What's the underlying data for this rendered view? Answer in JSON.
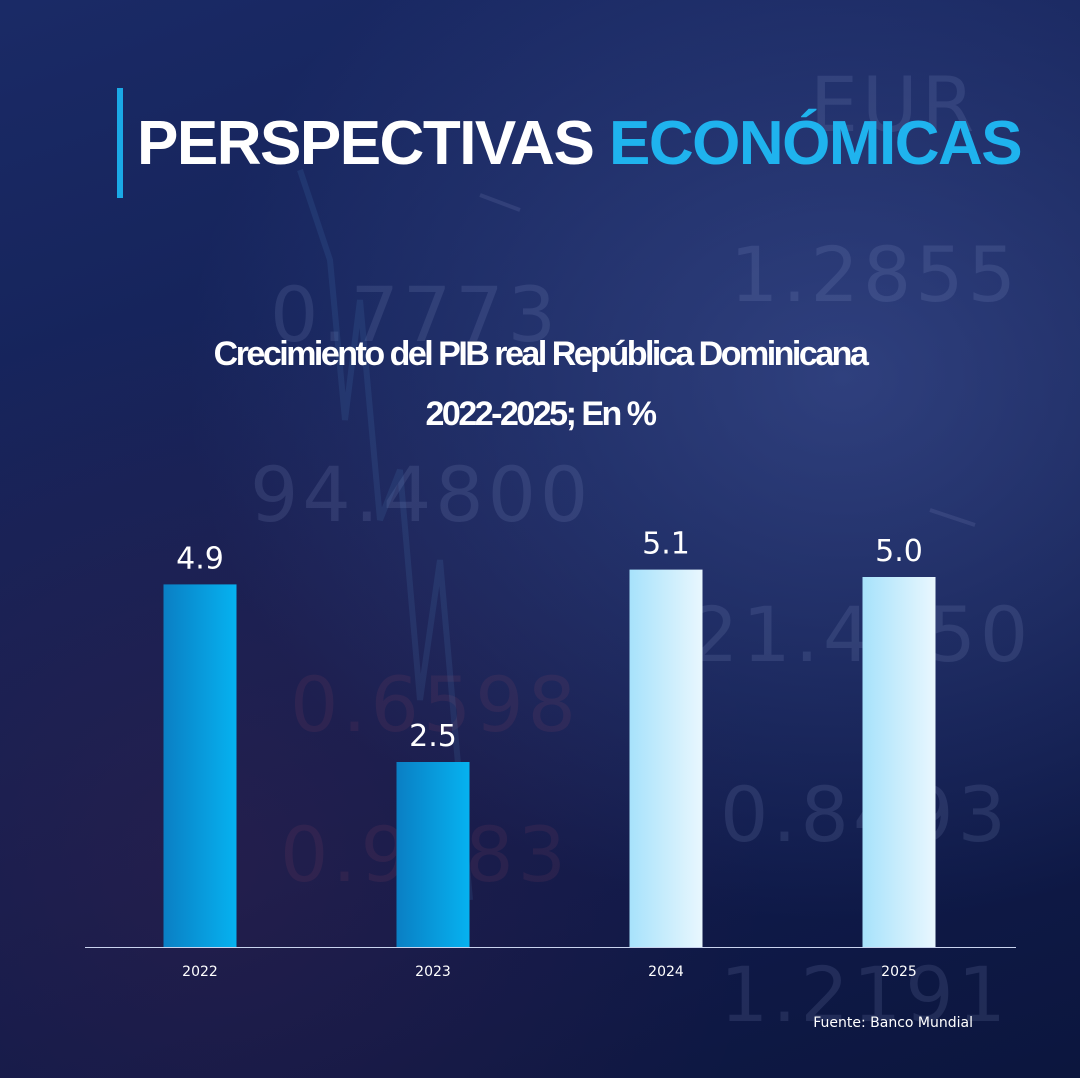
{
  "header": {
    "title_part1": "PERSPECTIVAS",
    "title_part2": "ECONÓMICAS"
  },
  "chart_data": {
    "type": "bar",
    "title_line1": "Crecimiento del PIB real República Dominicana",
    "title_line2": "2022-2025; En %",
    "categories": [
      "2022",
      "2023",
      "2024",
      "2025"
    ],
    "values": [
      4.9,
      2.5,
      5.1,
      5.0
    ],
    "value_labels": [
      "4.9",
      "2.5",
      "5.1",
      "5.0"
    ],
    "xlabel": "",
    "ylabel": "",
    "grid": false,
    "legend": "none",
    "bar_colors": [
      [
        "#0a7fc4",
        "#06b2f0"
      ],
      [
        "#0a7fc4",
        "#06b2f0"
      ],
      [
        "#a7e2fb",
        "#e9f7fe"
      ],
      [
        "#a7e2fb",
        "#e9f7fe"
      ]
    ]
  },
  "footer": {
    "source": "Fuente: Banco Mundial"
  },
  "colors": {
    "accent": "#1fb3ee",
    "background": "#142156",
    "text": "#ffffff"
  }
}
